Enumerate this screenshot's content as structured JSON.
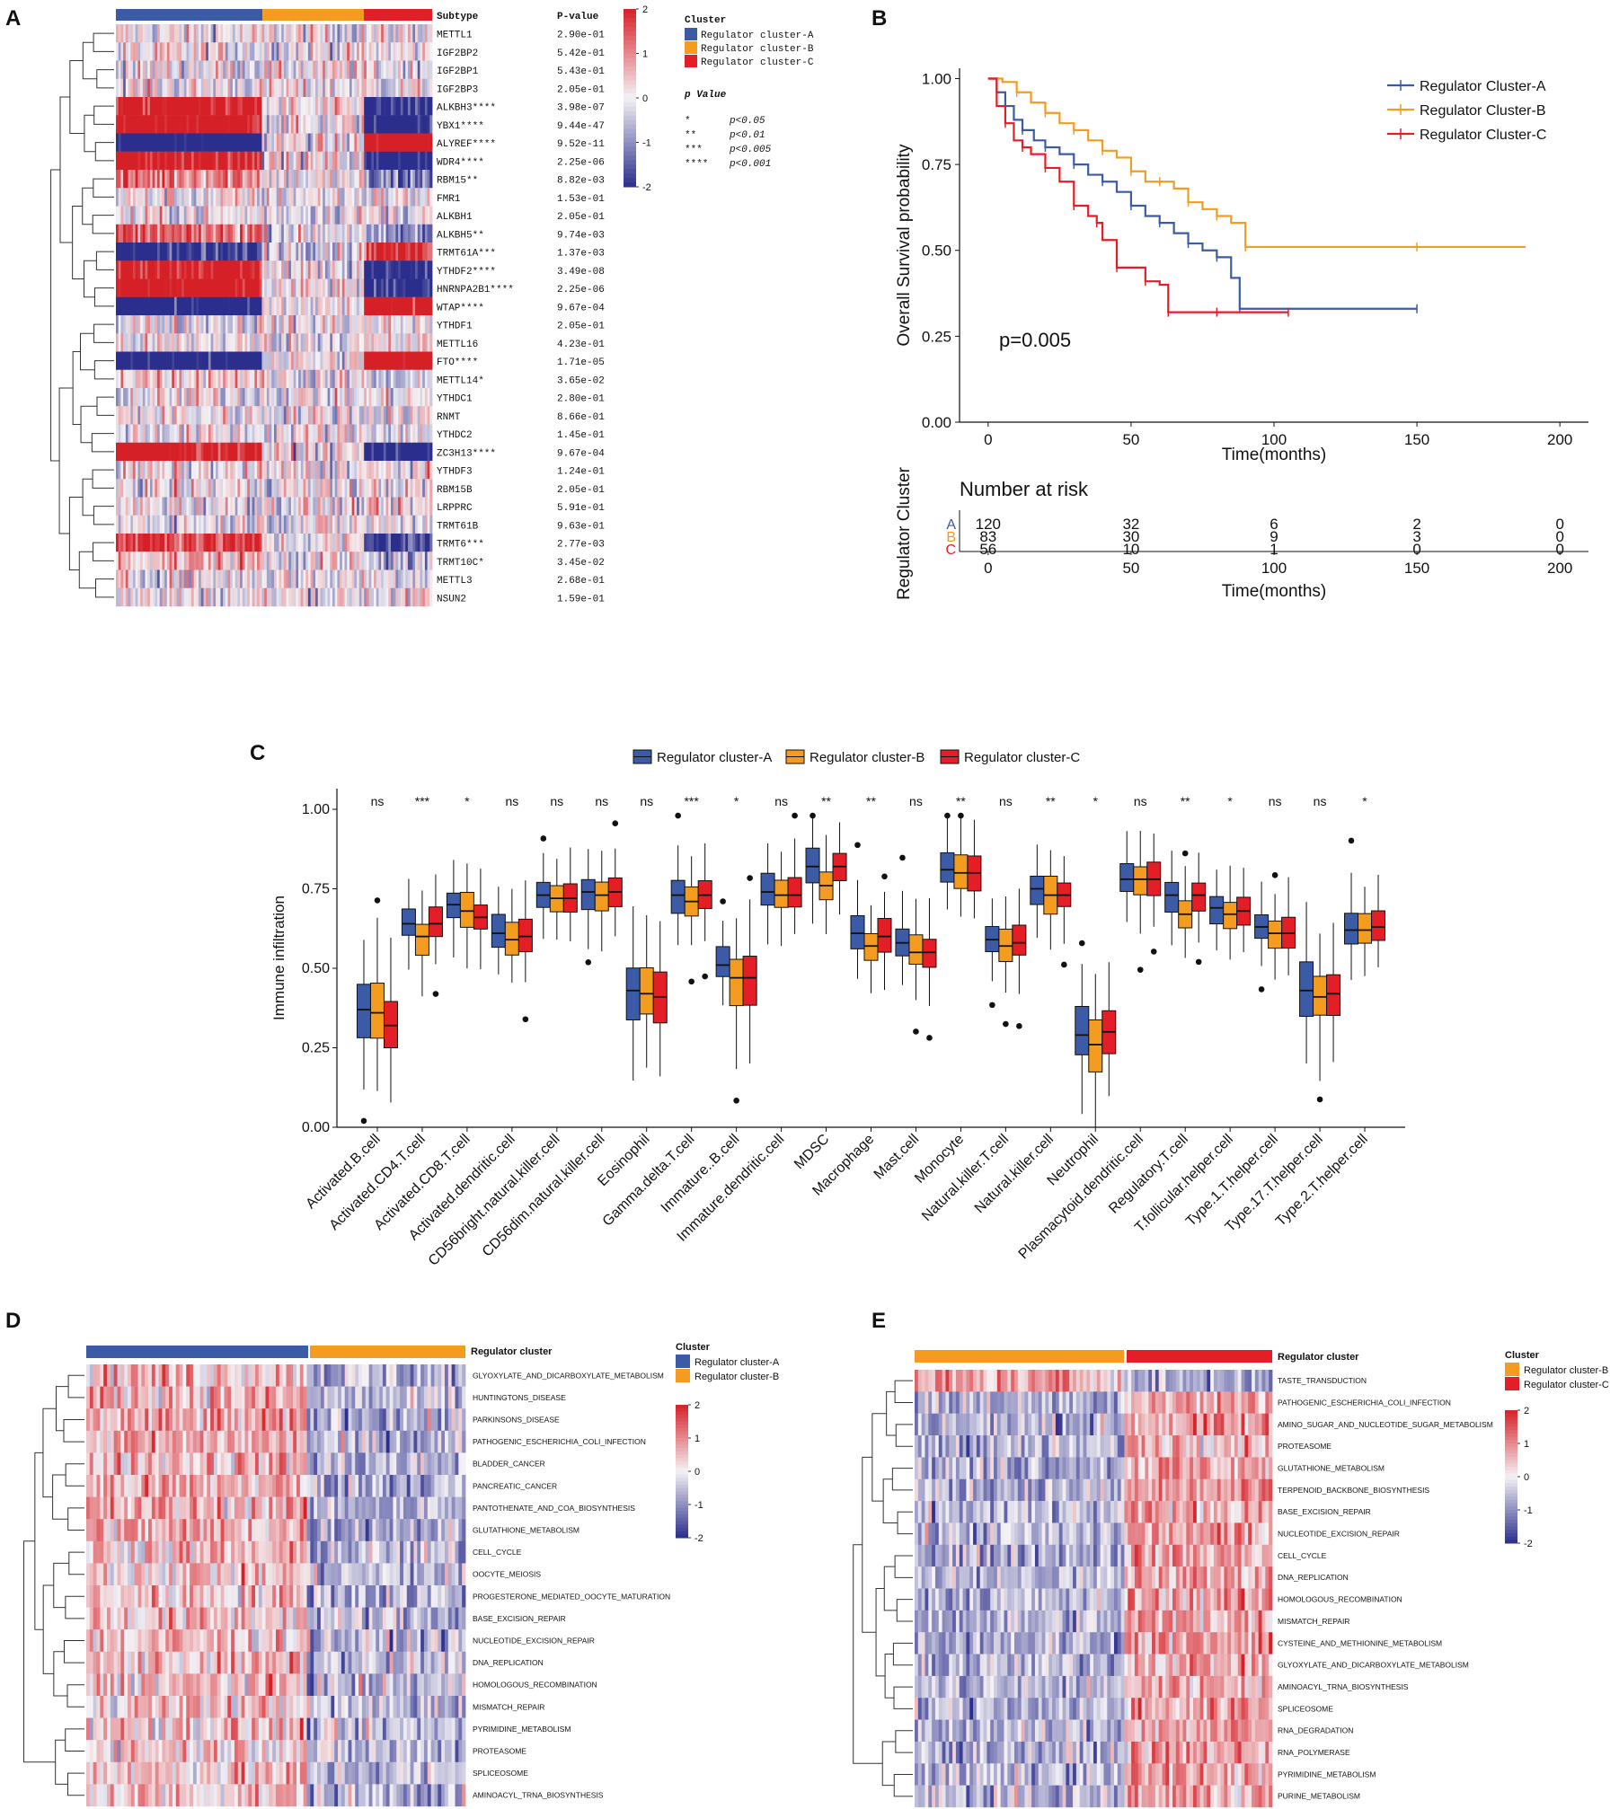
{
  "colors": {
    "A": "#3B5BA7",
    "B": "#F39C1F",
    "C": "#E41E26",
    "low": "#2B2E8C",
    "mid": "#F4F2F5",
    "high": "#D62027",
    "box_fill_A": "#3B5BA7",
    "box_fill_B": "#F39C1F",
    "box_fill_C": "#E41E26"
  },
  "chart_data": [
    {
      "panel": "A",
      "type": "heatmap",
      "subtype_label": "Subtype",
      "pvalue_header": "P-value",
      "subtype_groups": [
        {
          "name": "A",
          "count": 120
        },
        {
          "name": "B",
          "count": 83
        },
        {
          "name": "C",
          "count": 56
        }
      ],
      "rows": [
        "METTL1",
        "IGF2BP2",
        "IGF2BP1",
        "IGF2BP3",
        "ALKBH3****",
        "YBX1****",
        "ALYREF****",
        "WDR4****",
        "RBM15**",
        "FMR1",
        "ALKBH1",
        "ALKBH5**",
        "TRMT61A***",
        "YTHDF2****",
        "HNRNPA2B1****",
        "WTAP****",
        "YTHDF1",
        "METTL16",
        "FTO****",
        "METTL14*",
        "YTHDC1",
        "RNMT",
        "YTHDC2",
        "ZC3H13****",
        "YTHDF3",
        "RBM15B",
        "LRPPRC",
        "TRMT61B",
        "TRMT6***",
        "TRMT10C*",
        "METTL3",
        "NSUN2"
      ],
      "pvalues": [
        "2.90e-01",
        "5.42e-01",
        "5.43e-01",
        "2.05e-01",
        "3.98e-07",
        "9.44e-47",
        "9.52e-11",
        "2.25e-06",
        "8.82e-03",
        "1.53e-01",
        "2.05e-01",
        "9.74e-03",
        "1.37e-03",
        "3.49e-08",
        "2.25e-06",
        "9.67e-04",
        "2.05e-01",
        "4.23e-01",
        "1.71e-05",
        "3.65e-02",
        "2.80e-01",
        "8.66e-01",
        "1.45e-01",
        "9.67e-04",
        "1.24e-01",
        "2.05e-01",
        "5.91e-01",
        "9.63e-01",
        "2.77e-03",
        "3.45e-02",
        "2.68e-01",
        "1.59e-01"
      ],
      "color_scale": {
        "ticks": [
          "2",
          "1",
          "0",
          "-1",
          "-2"
        ],
        "range": [
          -2,
          2
        ]
      },
      "legend_title": "Cluster",
      "legend": [
        "Regulator cluster-A",
        "Regulator cluster-B",
        "Regulator cluster-C"
      ],
      "pvalue_legend_title": "p Value",
      "pvalue_legend": [
        {
          "stars": "*",
          "text": "p<0.05"
        },
        {
          "stars": "**",
          "text": "p<0.01"
        },
        {
          "stars": "***",
          "text": "p<0.005"
        },
        {
          "stars": "****",
          "text": "p<0.001"
        }
      ]
    },
    {
      "panel": "B",
      "type": "line",
      "title": "",
      "xlabel": "Time(months)",
      "ylabel": "Overall Survival probability",
      "xlim": [
        -10,
        210
      ],
      "ylim": [
        0,
        1.03
      ],
      "xticks": [
        "0",
        "50",
        "100",
        "150",
        "200"
      ],
      "yticks": [
        "0.00",
        "0.25",
        "0.50",
        "0.75",
        "1.00"
      ],
      "annotation": "p=0.005",
      "series": [
        {
          "name": "Regulator Cluster-A",
          "x": [
            0,
            3,
            6,
            9,
            12,
            16,
            20,
            25,
            30,
            35,
            40,
            45,
            50,
            55,
            60,
            65,
            70,
            75,
            80,
            85,
            88,
            100,
            150
          ],
          "y": [
            1.0,
            0.96,
            0.92,
            0.88,
            0.85,
            0.82,
            0.8,
            0.78,
            0.75,
            0.72,
            0.7,
            0.67,
            0.63,
            0.6,
            0.58,
            0.55,
            0.52,
            0.5,
            0.48,
            0.42,
            0.33,
            0.33,
            0.33
          ]
        },
        {
          "name": "Regulator Cluster-B",
          "x": [
            0,
            5,
            10,
            15,
            20,
            25,
            30,
            35,
            40,
            45,
            50,
            55,
            60,
            65,
            70,
            75,
            80,
            85,
            90,
            100,
            150,
            188
          ],
          "y": [
            1.0,
            0.99,
            0.96,
            0.93,
            0.9,
            0.87,
            0.85,
            0.82,
            0.79,
            0.77,
            0.73,
            0.7,
            0.7,
            0.68,
            0.64,
            0.62,
            0.6,
            0.58,
            0.51,
            0.51,
            0.51,
            0.51
          ]
        },
        {
          "name": "Regulator Cluster-C",
          "x": [
            0,
            3,
            6,
            9,
            12,
            15,
            20,
            25,
            30,
            35,
            38,
            40,
            45,
            50,
            55,
            60,
            63,
            70,
            80,
            90,
            105
          ],
          "y": [
            1.0,
            0.92,
            0.87,
            0.82,
            0.8,
            0.78,
            0.74,
            0.7,
            0.63,
            0.6,
            0.58,
            0.53,
            0.45,
            0.45,
            0.41,
            0.4,
            0.32,
            0.32,
            0.32,
            0.32,
            0.32
          ]
        }
      ],
      "risk_table": {
        "title": "Number at risk",
        "ylabel": "Regulator Cluster",
        "xlabel": "Time(months)",
        "times": [
          0,
          50,
          100,
          150,
          200
        ],
        "xticks": [
          "0",
          "50",
          "100",
          "150",
          "200"
        ],
        "rows": [
          {
            "label": "A",
            "counts": [
              "120",
              "32",
              "6",
              "2",
              "0"
            ]
          },
          {
            "label": "B",
            "counts": [
              "83",
              "30",
              "9",
              "3",
              "0"
            ]
          },
          {
            "label": "C",
            "counts": [
              "56",
              "10",
              "1",
              "0",
              "0"
            ]
          }
        ]
      }
    },
    {
      "panel": "C",
      "type": "bar",
      "subtype": "boxplot",
      "ylabel": "Immune infiltration",
      "ylim": [
        0,
        1.0
      ],
      "yticks": [
        "0.00",
        "0.25",
        "0.50",
        "0.75",
        "1.00"
      ],
      "legend": [
        "Regulator cluster-A",
        "Regulator cluster-B",
        "Regulator cluster-C"
      ],
      "categories": [
        "Activated.B.cell",
        "Activated.CD4.T.cell",
        "Activated.CD8.T.cell",
        "Activated.dendritic.cell",
        "CD56bright.natural.killer.cell",
        "CD56dim.natural.killer.cell",
        "Eosinophil",
        "Gamma.delta.T.cell",
        "Immature..B.cell",
        "Immature.dendritic.cell",
        "MDSC",
        "Macrophage",
        "Mast.cell",
        "Monocyte",
        "Natural.killer.T.cell",
        "Natural.killer.cell",
        "Neutrophil",
        "Plasmacytoid.dendritic.cell",
        "Regulatory.T.cell",
        "T.follicular.helper.cell",
        "Type.1.T.helper.cell",
        "Type.17.T.helper.cell",
        "Type.2.T.helper.cell"
      ],
      "significance": [
        "ns",
        "***",
        "*",
        "ns",
        "ns",
        "ns",
        "ns",
        "***",
        "*",
        "ns",
        "**",
        "**",
        "ns",
        "**",
        "ns",
        "**",
        "*",
        "ns",
        "**",
        "*",
        "ns",
        "ns",
        "*"
      ],
      "series": [
        {
          "name": "Regulator cluster-A",
          "medians": [
            0.37,
            0.64,
            0.7,
            0.61,
            0.73,
            0.74,
            0.43,
            0.73,
            0.51,
            0.74,
            0.82,
            0.61,
            0.58,
            0.81,
            0.59,
            0.75,
            0.29,
            0.78,
            0.73,
            0.69,
            0.63,
            0.43,
            0.62
          ]
        },
        {
          "name": "Regulator cluster-B",
          "medians": [
            0.36,
            0.6,
            0.68,
            0.59,
            0.72,
            0.73,
            0.42,
            0.71,
            0.47,
            0.73,
            0.76,
            0.57,
            0.55,
            0.8,
            0.57,
            0.73,
            0.26,
            0.78,
            0.67,
            0.67,
            0.61,
            0.41,
            0.62
          ]
        },
        {
          "name": "Regulator cluster-C",
          "medians": [
            0.32,
            0.64,
            0.66,
            0.6,
            0.72,
            0.74,
            0.41,
            0.73,
            0.47,
            0.73,
            0.82,
            0.6,
            0.55,
            0.8,
            0.58,
            0.73,
            0.3,
            0.78,
            0.73,
            0.68,
            0.61,
            0.42,
            0.63
          ]
        }
      ]
    },
    {
      "panel": "D",
      "type": "heatmap",
      "annotation_label": "Regulator cluster",
      "legend_title": "Cluster",
      "legend": [
        "Regulator cluster-A",
        "Regulator cluster-B"
      ],
      "color_scale": {
        "ticks": [
          "2",
          "1",
          "0",
          "-1",
          "-2"
        ],
        "range": [
          -2,
          2
        ]
      },
      "rows": [
        "GLYOXYLATE_AND_DICARBOXYLATE_METABOLISM",
        "HUNTINGTONS_DISEASE",
        "PARKINSONS_DISEASE",
        "PATHOGENIC_ESCHERICHIA_COLI_INFECTION",
        "BLADDER_CANCER",
        "PANCREATIC_CANCER",
        "PANTOTHENATE_AND_COA_BIOSYNTHESIS",
        "GLUTATHIONE_METABOLISM",
        "CELL_CYCLE",
        "OOCYTE_MEIOSIS",
        "PROGESTERONE_MEDIATED_OOCYTE_MATURATION",
        "BASE_EXCISION_REPAIR",
        "NUCLEOTIDE_EXCISION_REPAIR",
        "DNA_REPLICATION",
        "HOMOLOGOUS_RECOMBINATION",
        "MISMATCH_REPAIR",
        "PYRIMIDINE_METABOLISM",
        "PROTEASOME",
        "SPLICEOSOME",
        "AMINOACYL_TRNA_BIOSYNTHESIS"
      ]
    },
    {
      "panel": "E",
      "type": "heatmap",
      "annotation_label": "Regulator cluster",
      "legend_title": "Cluster",
      "legend": [
        "Regulator cluster-B",
        "Regulator cluster-C"
      ],
      "color_scale": {
        "ticks": [
          "2",
          "1",
          "0",
          "-1",
          "-2"
        ],
        "range": [
          -2,
          2
        ]
      },
      "rows": [
        "TASTE_TRANSDUCTION",
        "PATHOGENIC_ESCHERICHIA_COLI_INFECTION",
        "AMINO_SUGAR_AND_NUCLEOTIDE_SUGAR_METABOLISM",
        "PROTEASOME",
        "GLUTATHIONE_METABOLISM",
        "TERPENOID_BACKBONE_BIOSYNTHESIS",
        "BASE_EXCISION_REPAIR",
        "NUCLEOTIDE_EXCISION_REPAIR",
        "CELL_CYCLE",
        "DNA_REPLICATION",
        "HOMOLOGOUS_RECOMBINATION",
        "MISMATCH_REPAIR",
        "CYSTEINE_AND_METHIONINE_METABOLISM",
        "GLYOXYLATE_AND_DICARBOXYLATE_METABOLISM",
        "AMINOACYL_TRNA_BIOSYNTHESIS",
        "SPLICEOSOME",
        "RNA_DEGRADATION",
        "RNA_POLYMERASE",
        "PYRIMIDINE_METABOLISM",
        "PURINE_METABOLISM"
      ]
    }
  ],
  "panel_labels": [
    "A",
    "B",
    "C",
    "D",
    "E"
  ]
}
